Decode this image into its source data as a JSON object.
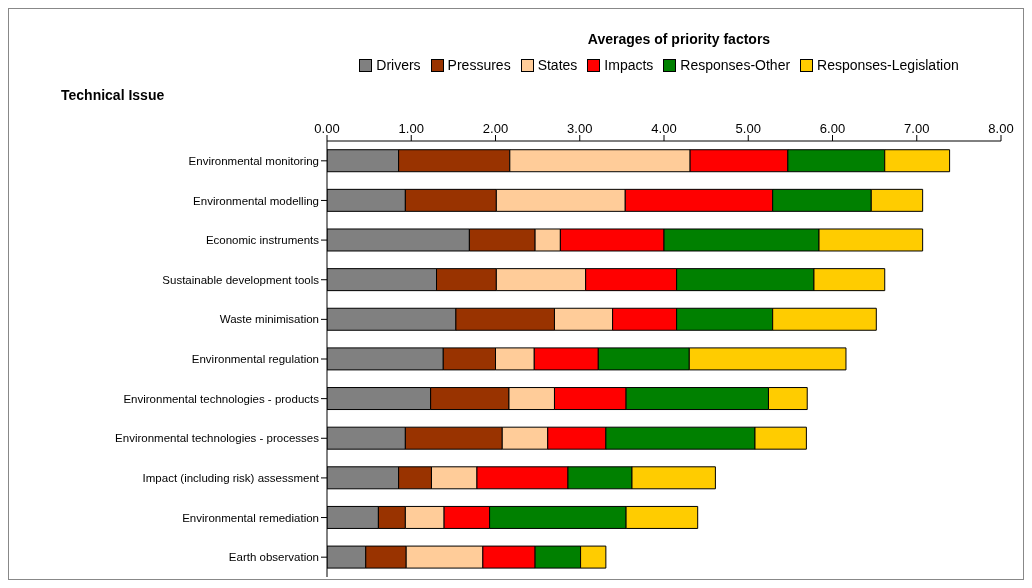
{
  "chart_data": {
    "type": "bar",
    "orientation": "horizontal",
    "stacked": true,
    "title": "Averages of priority factors",
    "ylabel": "Technical Issue",
    "categories": [
      "Environmental monitoring",
      "Environmental modelling",
      "Economic instruments",
      "Sustainable development tools",
      "Waste minimisation",
      "Environmental regulation",
      "Environmental technologies - products",
      "Environmental technologies - processes",
      "Impact (including risk) assessment",
      "Environmental remediation",
      "Earth observation"
    ],
    "series": [
      {
        "name": "Drivers",
        "color": "#808080",
        "values": [
          0.85,
          0.93,
          1.69,
          1.3,
          1.53,
          1.38,
          1.23,
          0.93,
          0.85,
          0.61,
          0.46
        ]
      },
      {
        "name": "Pressures",
        "color": "#993300",
        "values": [
          1.32,
          1.08,
          0.78,
          0.71,
          1.17,
          0.62,
          0.93,
          1.15,
          0.39,
          0.32,
          0.48
        ]
      },
      {
        "name": "States",
        "color": "#ffcc99",
        "values": [
          2.14,
          1.53,
          0.3,
          1.06,
          0.69,
          0.46,
          0.54,
          0.54,
          0.54,
          0.46,
          0.91
        ]
      },
      {
        "name": "Impacts",
        "color": "#ff0000",
        "values": [
          1.16,
          1.75,
          1.23,
          1.08,
          0.76,
          0.76,
          0.85,
          0.69,
          1.08,
          0.54,
          0.62
        ]
      },
      {
        "name": "Responses-Other",
        "color": "#008000",
        "values": [
          1.15,
          1.17,
          1.84,
          1.63,
          1.14,
          1.08,
          1.69,
          1.77,
          0.76,
          1.62,
          0.54
        ]
      },
      {
        "name": "Responses-Legislation",
        "color": "#ffcc00",
        "values": [
          0.77,
          0.61,
          1.23,
          0.84,
          1.23,
          1.86,
          0.46,
          0.61,
          0.99,
          0.85,
          0.3
        ]
      }
    ],
    "xlim": [
      0,
      8
    ],
    "xticks": [
      {
        "value": 0,
        "label": "0.00"
      },
      {
        "value": 1,
        "label": "1.00"
      },
      {
        "value": 2,
        "label": "2.00"
      },
      {
        "value": 3,
        "label": "3.00"
      },
      {
        "value": 4,
        "label": "4.00"
      },
      {
        "value": 5,
        "label": "5.00"
      },
      {
        "value": 6,
        "label": "6.00"
      },
      {
        "value": 7,
        "label": "7.00"
      },
      {
        "value": 8,
        "label": "8.00"
      }
    ],
    "grid": false,
    "legend": "top"
  }
}
